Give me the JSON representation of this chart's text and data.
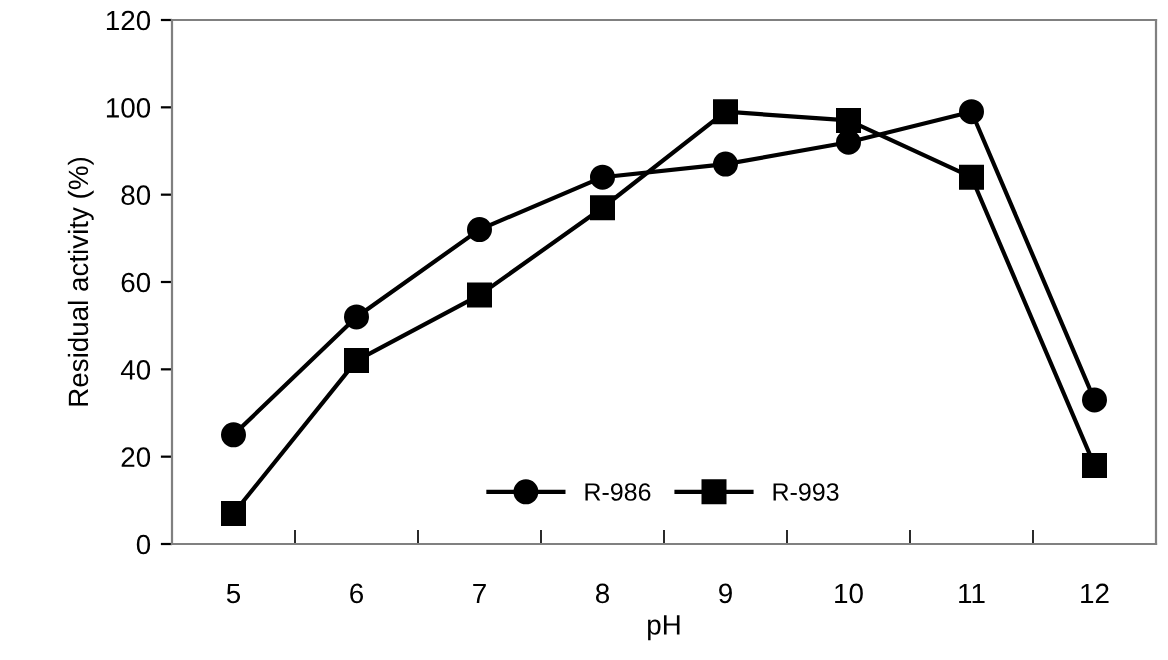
{
  "chart_data": {
    "type": "line",
    "xlabel": "pH",
    "ylabel": "Residual activity (%)",
    "categories": [
      "5",
      "6",
      "7",
      "8",
      "9",
      "10",
      "11",
      "12"
    ],
    "series": [
      {
        "name": "R-986",
        "color": "#000000",
        "marker": "circle",
        "values": [
          25,
          52,
          72,
          84,
          87,
          92,
          99,
          33
        ]
      },
      {
        "name": "R-993",
        "color": "#000000",
        "marker": "square",
        "values": [
          7,
          42,
          57,
          77,
          99,
          97,
          84,
          18
        ]
      }
    ],
    "ylim": [
      0,
      120
    ],
    "yticks": [
      0,
      20,
      40,
      60,
      80,
      100,
      120
    ],
    "grid": false,
    "legend": "bottom",
    "line_style": "solid"
  }
}
